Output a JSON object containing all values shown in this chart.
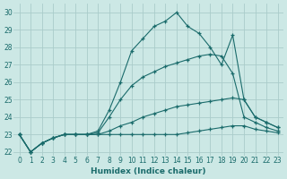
{
  "title": "",
  "xlabel": "Humidex (Indice chaleur)",
  "ylabel": "",
  "background_color": "#cce8e5",
  "grid_color": "#aaccca",
  "line_color": "#1a6b6b",
  "xlim": [
    -0.5,
    23.5
  ],
  "ylim": [
    21.8,
    30.5
  ],
  "yticks": [
    22,
    23,
    24,
    25,
    26,
    27,
    28,
    29,
    30
  ],
  "xticks": [
    0,
    1,
    2,
    3,
    4,
    5,
    6,
    7,
    8,
    9,
    10,
    11,
    12,
    13,
    14,
    15,
    16,
    17,
    18,
    19,
    20,
    21,
    22,
    23
  ],
  "series": [
    {
      "x": [
        0,
        1,
        2,
        3,
        4,
        5,
        6,
        7,
        8,
        9,
        10,
        11,
        12,
        13,
        14,
        15,
        16,
        17,
        18,
        19,
        20,
        21,
        22,
        23
      ],
      "y": [
        23,
        22,
        22.5,
        22.8,
        23,
        23,
        23,
        23,
        23,
        23,
        23,
        23,
        23,
        23,
        23,
        23.1,
        23.2,
        23.3,
        23.4,
        23.5,
        23.5,
        23.3,
        23.2,
        23.1
      ]
    },
    {
      "x": [
        0,
        1,
        2,
        3,
        4,
        5,
        6,
        7,
        8,
        9,
        10,
        11,
        12,
        13,
        14,
        15,
        16,
        17,
        18,
        19,
        20,
        21,
        22,
        23
      ],
      "y": [
        23,
        22,
        22.5,
        22.8,
        23,
        23,
        23,
        23,
        23.2,
        23.5,
        23.7,
        24.0,
        24.2,
        24.4,
        24.6,
        24.7,
        24.8,
        24.9,
        25.0,
        25.1,
        25.0,
        24.0,
        23.7,
        23.4
      ]
    },
    {
      "x": [
        0,
        1,
        2,
        3,
        4,
        5,
        6,
        7,
        8,
        9,
        10,
        11,
        12,
        13,
        14,
        15,
        16,
        17,
        18,
        19,
        20,
        21,
        22,
        23
      ],
      "y": [
        23,
        22,
        22.5,
        22.8,
        23,
        23,
        23,
        23.1,
        24.0,
        25.0,
        25.8,
        26.3,
        26.6,
        26.9,
        27.1,
        27.3,
        27.5,
        27.6,
        27.5,
        26.5,
        24.0,
        23.7,
        23.4,
        23.2
      ]
    },
    {
      "x": [
        0,
        1,
        2,
        3,
        4,
        5,
        6,
        7,
        8,
        9,
        10,
        11,
        12,
        13,
        14,
        15,
        16,
        17,
        18,
        19,
        20,
        21,
        22,
        23
      ],
      "y": [
        23,
        22,
        22.5,
        22.8,
        23,
        23,
        23,
        23.2,
        24.4,
        26.0,
        27.8,
        28.5,
        29.2,
        29.5,
        30.0,
        29.2,
        28.8,
        28.0,
        27.0,
        28.7,
        25.0,
        24.0,
        23.7,
        23.4
      ]
    }
  ]
}
